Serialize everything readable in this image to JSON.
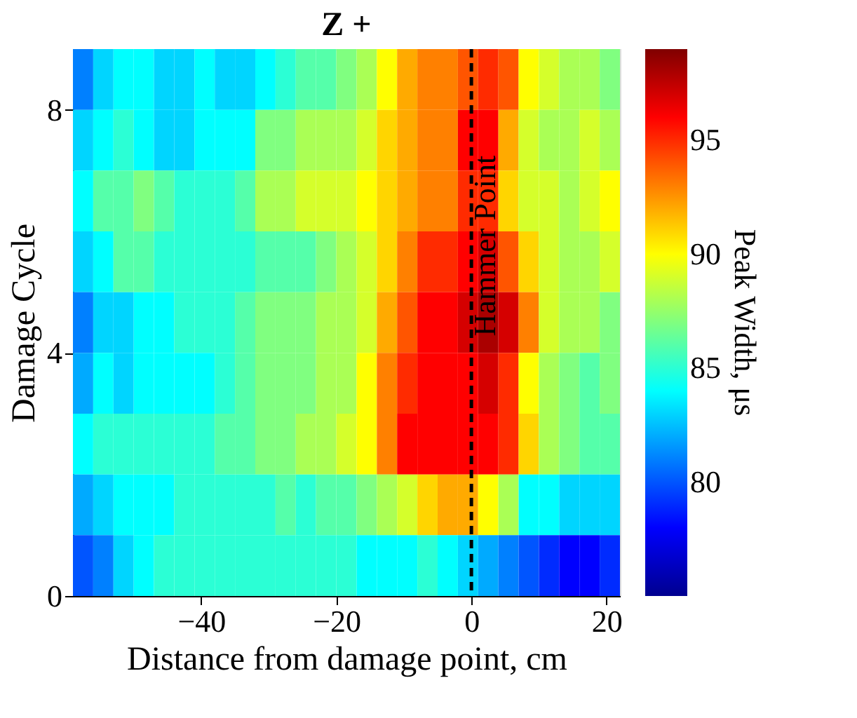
{
  "chart_data": {
    "type": "heatmap",
    "title": "Z +",
    "xlabel": "Distance from damage point, cm",
    "ylabel": "Damage Cycle",
    "clabel": "Peak Width, μs",
    "x": [
      -57.5,
      -54.5,
      -51.5,
      -48.5,
      -45.5,
      -42.5,
      -39.5,
      -36.5,
      -33.5,
      -30.5,
      -27.5,
      -24.5,
      -21.5,
      -18.5,
      -15.5,
      -12.5,
      -9.5,
      -6.5,
      -3.5,
      -0.5,
      2.5,
      5.5,
      8.5,
      11.5,
      14.5,
      17.5,
      20.5
    ],
    "y": [
      8.5,
      7.5,
      6.5,
      5.5,
      4.5,
      3.5,
      2.5,
      1.5,
      0.5
    ],
    "cells": [
      [
        81,
        83,
        84,
        84,
        83,
        83,
        84,
        83,
        83,
        84,
        85,
        86,
        86,
        87,
        88,
        90,
        92,
        93,
        93,
        94,
        95,
        94,
        90,
        89,
        88,
        88,
        87
      ],
      [
        83,
        84,
        85,
        84,
        83,
        83,
        84,
        84,
        84,
        87,
        87,
        88,
        88,
        88,
        89,
        91,
        92,
        93,
        93,
        96,
        96,
        92,
        89,
        88,
        88,
        89,
        88
      ],
      [
        84,
        86,
        86,
        87,
        86,
        85,
        85,
        85,
        86,
        88,
        88,
        89,
        89,
        89,
        90,
        91,
        92,
        93,
        93,
        95,
        95,
        91,
        89,
        89,
        88,
        89,
        90
      ],
      [
        83,
        84,
        86,
        86,
        85,
        85,
        85,
        85,
        85,
        86,
        86,
        86,
        87,
        88,
        89,
        91,
        93,
        95,
        95,
        96,
        97,
        94,
        91,
        89,
        88,
        88,
        89
      ],
      [
        81,
        83,
        83,
        84,
        84,
        85,
        85,
        85,
        86,
        87,
        87,
        87,
        88,
        88,
        89,
        92,
        94,
        96,
        96,
        97,
        98,
        97,
        93,
        89,
        88,
        88,
        87
      ],
      [
        82,
        84,
        83,
        84,
        84,
        84,
        84,
        85,
        86,
        87,
        87,
        87,
        88,
        88,
        90,
        93,
        95,
        96,
        96,
        96,
        97,
        95,
        90,
        88,
        87,
        86,
        87
      ],
      [
        84,
        85,
        85,
        85,
        85,
        85,
        85,
        86,
        86,
        87,
        87,
        88,
        88,
        89,
        90,
        93,
        96,
        96,
        96,
        96,
        96,
        95,
        91,
        88,
        87,
        86,
        86
      ],
      [
        82,
        83,
        84,
        84,
        84,
        85,
        85,
        85,
        85,
        85,
        86,
        85,
        86,
        86,
        87,
        88,
        89,
        91,
        92,
        92,
        90,
        88,
        84,
        84,
        83,
        83,
        83
      ],
      [
        80,
        81,
        83,
        84,
        85,
        85,
        85,
        85,
        85,
        85,
        85,
        85,
        85,
        85,
        84,
        84,
        84,
        85,
        84,
        83,
        82,
        81,
        80,
        79,
        78,
        78,
        79
      ]
    ],
    "xlim": [
      -59,
      22
    ],
    "xticks": [
      -40,
      -20,
      0,
      20
    ],
    "ylim": [
      0,
      9
    ],
    "yticks": [
      0,
      4,
      8
    ],
    "clim": [
      75,
      99
    ],
    "cticks": [
      80,
      85,
      90,
      95
    ],
    "colors": [
      "#00008f",
      "#0000ff",
      "#0080ff",
      "#00ffff",
      "#80ff80",
      "#ffff00",
      "#ff8000",
      "#ff0000",
      "#800000"
    ],
    "ref_lines": [
      {
        "axis": "x",
        "value": 0,
        "label": "Hammer Point",
        "color": "#000000",
        "line_style": "dashed"
      }
    ]
  }
}
